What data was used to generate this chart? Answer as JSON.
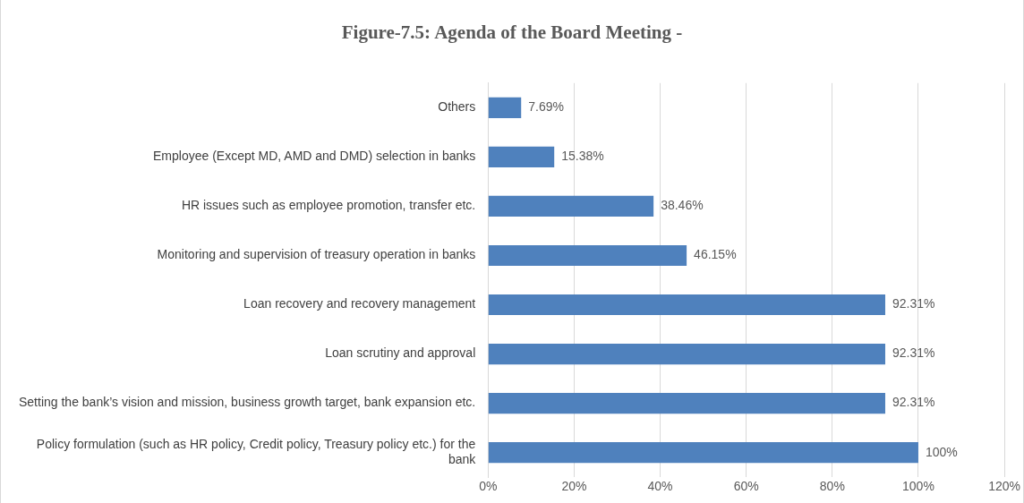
{
  "chart_data": {
    "type": "bar",
    "orientation": "horizontal",
    "title": "Figure-7.5: Agenda of the Board Meeting -",
    "categories": [
      "Others",
      "Employee (Except MD, AMD and DMD) selection in banks",
      "HR issues such as employee promotion, transfer etc.",
      "Monitoring and supervision of treasury operation in banks",
      "Loan recovery and recovery management",
      "Loan scrutiny and approval",
      "Setting the bank’s vision and mission, business growth target, bank expansion etc.",
      "Policy formulation (such as HR policy, Credit policy, Treasury policy etc.) for the bank"
    ],
    "values": [
      7.69,
      15.38,
      38.46,
      46.15,
      92.31,
      92.31,
      92.31,
      100
    ],
    "value_labels": [
      "7.69%",
      "15.38%",
      "38.46%",
      "46.15%",
      "92.31%",
      "92.31%",
      "92.31%",
      "100%"
    ],
    "color": "#4f81bd",
    "xlim": [
      0,
      120
    ],
    "xticks": [
      {
        "value": 0,
        "label": "0%"
      },
      {
        "value": 20,
        "label": "20%"
      },
      {
        "value": 40,
        "label": "40%"
      },
      {
        "value": 60,
        "label": "60%"
      },
      {
        "value": 80,
        "label": "80%"
      },
      {
        "value": 100,
        "label": "100%"
      },
      {
        "value": 120,
        "label": "120%"
      }
    ],
    "grid": "x"
  }
}
